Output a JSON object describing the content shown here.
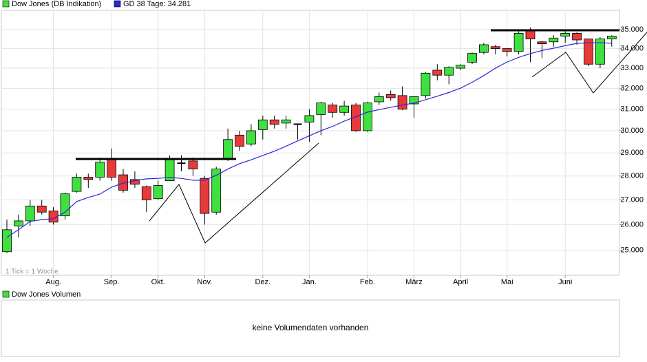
{
  "chart_data": [
    {
      "type": "candlestick",
      "series": [
        {
          "name": "Dow Jones (DB Indikation)",
          "color": "#3fe03f",
          "down_color": "#e83a3a",
          "open": [
            24950,
            25950,
            26150,
            26750,
            26550,
            26350,
            27350,
            27950,
            27950,
            28750,
            28050,
            27850,
            27550,
            27050,
            27800,
            28550,
            28650,
            27900,
            26500,
            28750,
            29800,
            29400,
            30050,
            30500,
            30350,
            30300,
            30400,
            30750,
            31200,
            30850,
            31200,
            30000,
            31350,
            31700,
            31650,
            31250,
            31650,
            32900,
            32650,
            33000,
            33300,
            33800,
            34100,
            34000,
            33850,
            34950,
            34350,
            34350,
            34650,
            34800,
            34500,
            33200,
            34500
          ],
          "high": [
            26200,
            26400,
            27000,
            27000,
            26700,
            27300,
            28100,
            28100,
            28800,
            29200,
            28300,
            28200,
            27600,
            27800,
            28900,
            28900,
            28800,
            28000,
            28400,
            30100,
            30000,
            30300,
            30700,
            30700,
            30700,
            30300,
            31000,
            31350,
            31300,
            31400,
            31300,
            31350,
            31800,
            31900,
            32100,
            31600,
            32800,
            33200,
            33100,
            33200,
            33800,
            34300,
            34200,
            34000,
            34900,
            35100,
            34400,
            34700,
            34900,
            34850,
            34500,
            34600,
            34700
          ],
          "low": [
            24900,
            25500,
            25950,
            26400,
            26000,
            26200,
            27300,
            27500,
            27800,
            27800,
            27300,
            27500,
            26500,
            27000,
            27800,
            28200,
            28000,
            26000,
            26400,
            28650,
            29100,
            29300,
            29600,
            30100,
            30100,
            29600,
            29500,
            29800,
            30600,
            30700,
            29950,
            29950,
            31200,
            31400,
            30950,
            30600,
            31500,
            32400,
            32200,
            32900,
            33200,
            33700,
            33700,
            33600,
            33700,
            33300,
            33500,
            34100,
            34300,
            34200,
            33100,
            33000,
            34100
          ],
          "close": [
            25800,
            26150,
            26750,
            26500,
            26100,
            27250,
            27950,
            27850,
            28600,
            27950,
            27400,
            27650,
            27000,
            27600,
            28700,
            28550,
            28300,
            26450,
            28300,
            29600,
            29300,
            30000,
            30500,
            30300,
            30500,
            30300,
            30700,
            31300,
            30850,
            31150,
            30000,
            31300,
            31600,
            31550,
            31000,
            31600,
            32750,
            32650,
            33050,
            33150,
            33750,
            34200,
            34000,
            33850,
            34800,
            34500,
            34250,
            34550,
            34800,
            34450,
            33200,
            34500,
            34650
          ]
        },
        {
          "name": "GD 38 Tage: 34.281",
          "color": "#2626d8",
          "type": "line",
          "values": [
            25500,
            25800,
            26130,
            26200,
            26240,
            26500,
            26930,
            27100,
            27240,
            27530,
            27700,
            27800,
            27880,
            27900,
            27940,
            27900,
            27820,
            27820,
            28030,
            28300,
            28530,
            28700,
            28890,
            29080,
            29300,
            29540,
            29770,
            30000,
            30200,
            30440,
            30650,
            30860,
            30980,
            31090,
            31200,
            31290,
            31450,
            31620,
            31800,
            32010,
            32300,
            32630,
            33000,
            33310,
            33550,
            33740,
            33900,
            34020,
            34150,
            34270,
            34300,
            34300,
            34281
          ]
        }
      ],
      "categories": [
        null,
        null,
        null,
        null,
        "Aug.",
        null,
        null,
        null,
        null,
        "Sep.",
        null,
        null,
        null,
        "Okt.",
        null,
        null,
        null,
        "Nov.",
        null,
        null,
        null,
        null,
        "Dez.",
        null,
        null,
        null,
        "Jan.",
        null,
        null,
        null,
        null,
        "Feb.",
        null,
        null,
        null,
        "März",
        null,
        null,
        null,
        "April",
        null,
        null,
        null,
        "Mai",
        null,
        null,
        null,
        null,
        "Juni",
        null,
        null,
        null,
        null
      ],
      "log_scale": true,
      "ylim": [
        24070,
        36040
      ],
      "yticks": [
        {
          "value": 25000,
          "label": "25.000"
        },
        {
          "value": 26000,
          "label": "26.000"
        },
        {
          "value": 27000,
          "label": "27.000"
        },
        {
          "value": 28000,
          "label": "28.000"
        },
        {
          "value": 29000,
          "label": "29.000"
        },
        {
          "value": 30000,
          "label": "30.000"
        },
        {
          "value": 31000,
          "label": "31.000"
        },
        {
          "value": 32000,
          "label": "32.000"
        },
        {
          "value": 33000,
          "label": "33.000"
        },
        {
          "value": 34000,
          "label": "34.000"
        },
        {
          "value": 35000,
          "label": "35.000"
        }
      ],
      "grid": true,
      "annotation": "1 Tick = 1 Woche"
    },
    {
      "type": "volume",
      "series": [
        {
          "name": "Dow Jones Volumen",
          "color": "#3fe03f"
        }
      ],
      "message": "keine Volumendaten vorhanden"
    }
  ]
}
